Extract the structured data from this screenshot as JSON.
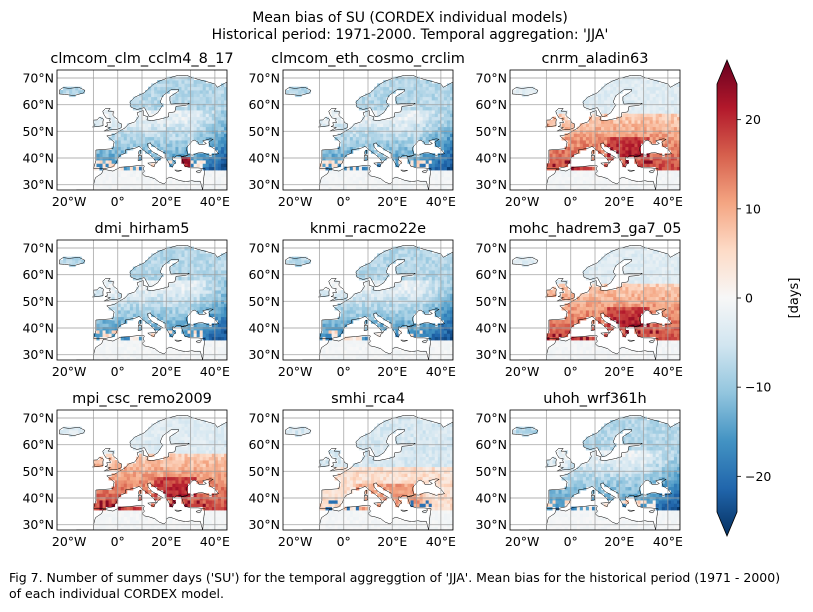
{
  "figure": {
    "title_line1": "Mean bias of SU (CORDEX individual models)",
    "title_line2": "Historical period: 1971-2000. Temporal aggregation: 'JJA'"
  },
  "caption": "Fig 7. Number of summer days ('SU') for the temporal aggreggtion of 'JJA'. Mean bias for the historical period (1971 - 2000) of each individual CORDEX model.",
  "chart_data": {
    "type": "heatmap",
    "variable": "SU",
    "lat_ticks": [
      "30°N",
      "40°N",
      "50°N",
      "60°N",
      "70°N"
    ],
    "lon_ticks": [
      "20°W",
      "0°",
      "20°E",
      "40°E"
    ],
    "lat_range": [
      28,
      73
    ],
    "lon_range": [
      -25,
      45
    ],
    "grid": true,
    "panels": [
      {
        "title": "clmcom_clm_cclm4_8_17",
        "pattern": "cold"
      },
      {
        "title": "clmcom_eth_cosmo_crclim",
        "pattern": "cold"
      },
      {
        "title": "cnrm_aladin63",
        "pattern": "warm"
      },
      {
        "title": "dmi_hirham5",
        "pattern": "cold"
      },
      {
        "title": "knmi_racmo22e",
        "pattern": "cold"
      },
      {
        "title": "mohc_hadrem3_ga7_05",
        "pattern": "warm"
      },
      {
        "title": "mpi_csc_remo2009",
        "pattern": "warm"
      },
      {
        "title": "smhi_rca4",
        "pattern": "mixed"
      },
      {
        "title": "uhoh_wrf361h",
        "pattern": "cold"
      }
    ],
    "colorbar": {
      "label": "[days]",
      "ticks": [
        20,
        10,
        0,
        -10,
        -20
      ],
      "tick_labels": [
        "20",
        "10",
        "0",
        "−10",
        "−20"
      ],
      "range": [
        -24,
        24
      ],
      "colormap": [
        "#053061",
        "#2166ac",
        "#4393c3",
        "#92c5de",
        "#d1e5f0",
        "#f7f7f7",
        "#fddbc7",
        "#f4a582",
        "#d6604d",
        "#b2182b",
        "#67001f"
      ]
    }
  }
}
